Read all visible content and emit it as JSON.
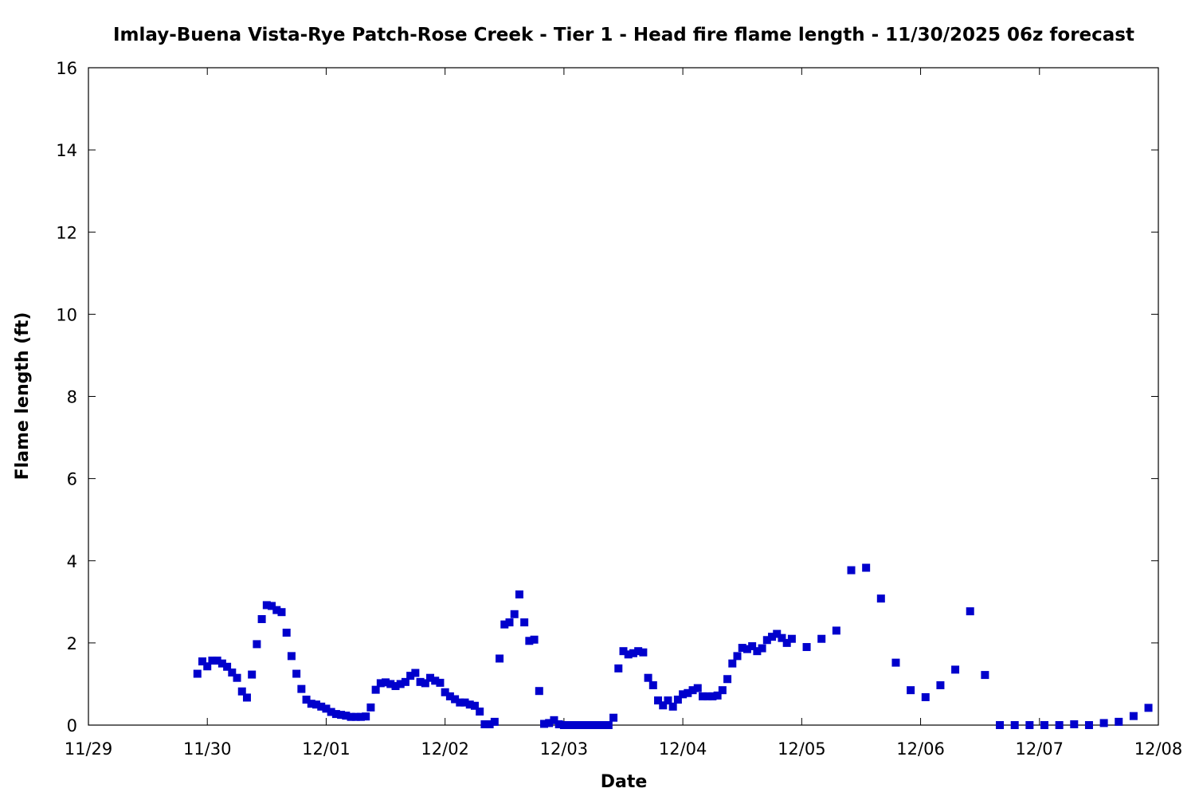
{
  "chart_data": {
    "type": "scatter",
    "title": "Imlay-Buena Vista-Rye Patch-Rose Creek - Tier 1 - Head fire flame length - 11/30/2025 06z forecast",
    "xlabel": "Date",
    "ylabel": "Flame length (ft)",
    "x_ticks": [
      "11/29",
      "11/30",
      "12/01",
      "12/02",
      "12/03",
      "12/04",
      "12/05",
      "12/06",
      "12/07",
      "12/08"
    ],
    "y_ticks": [
      0,
      2,
      4,
      6,
      8,
      10,
      12,
      14,
      16
    ],
    "xlim": [
      "11/29 00",
      "12/08 00"
    ],
    "ylim": [
      0,
      16
    ],
    "grid": false,
    "marker_color": "#0000cc",
    "points": [
      [
        "11/29 22",
        1.25
      ],
      [
        "11/29 23",
        1.55
      ],
      [
        "11/30 00",
        1.43
      ],
      [
        "11/30 01",
        1.57
      ],
      [
        "11/30 02",
        1.57
      ],
      [
        "11/30 03",
        1.5
      ],
      [
        "11/30 04",
        1.42
      ],
      [
        "11/30 05",
        1.28
      ],
      [
        "11/30 06",
        1.15
      ],
      [
        "11/30 07",
        0.82
      ],
      [
        "11/30 08",
        0.67
      ],
      [
        "11/30 09",
        1.23
      ],
      [
        "11/30 10",
        1.97
      ],
      [
        "11/30 11",
        2.58
      ],
      [
        "11/30 12",
        2.92
      ],
      [
        "11/30 13",
        2.9
      ],
      [
        "11/30 14",
        2.8
      ],
      [
        "11/30 15",
        2.75
      ],
      [
        "11/30 16",
        2.25
      ],
      [
        "11/30 17",
        1.68
      ],
      [
        "11/30 18",
        1.25
      ],
      [
        "11/30 19",
        0.88
      ],
      [
        "11/30 20",
        0.62
      ],
      [
        "11/30 21",
        0.52
      ],
      [
        "11/30 22",
        0.5
      ],
      [
        "11/30 23",
        0.45
      ],
      [
        "12/01 00",
        0.4
      ],
      [
        "12/01 01",
        0.32
      ],
      [
        "12/01 02",
        0.27
      ],
      [
        "12/01 03",
        0.25
      ],
      [
        "12/01 04",
        0.23
      ],
      [
        "12/01 05",
        0.2
      ],
      [
        "12/01 06",
        0.2
      ],
      [
        "12/01 07",
        0.2
      ],
      [
        "12/01 08",
        0.21
      ],
      [
        "12/01 09",
        0.43
      ],
      [
        "12/01 10",
        0.86
      ],
      [
        "12/01 11",
        1.02
      ],
      [
        "12/01 12",
        1.04
      ],
      [
        "12/01 13",
        1.0
      ],
      [
        "12/01 14",
        0.95
      ],
      [
        "12/01 15",
        1.0
      ],
      [
        "12/01 16",
        1.05
      ],
      [
        "12/01 17",
        1.2
      ],
      [
        "12/01 18",
        1.27
      ],
      [
        "12/01 19",
        1.05
      ],
      [
        "12/01 20",
        1.02
      ],
      [
        "12/01 21",
        1.15
      ],
      [
        "12/01 22",
        1.08
      ],
      [
        "12/01 23",
        1.03
      ],
      [
        "12/02 00",
        0.8
      ],
      [
        "12/02 01",
        0.7
      ],
      [
        "12/02 02",
        0.63
      ],
      [
        "12/02 03",
        0.55
      ],
      [
        "12/02 04",
        0.55
      ],
      [
        "12/02 05",
        0.5
      ],
      [
        "12/02 06",
        0.47
      ],
      [
        "12/02 07",
        0.33
      ],
      [
        "12/02 08",
        0.02
      ],
      [
        "12/02 09",
        0.02
      ],
      [
        "12/02 10",
        0.08
      ],
      [
        "12/02 11",
        1.62
      ],
      [
        "12/02 12",
        2.45
      ],
      [
        "12/02 13",
        2.5
      ],
      [
        "12/02 14",
        2.7
      ],
      [
        "12/02 15",
        3.18
      ],
      [
        "12/02 16",
        2.5
      ],
      [
        "12/02 17",
        2.05
      ],
      [
        "12/02 18",
        2.08
      ],
      [
        "12/02 19",
        0.83
      ],
      [
        "12/02 20",
        0.03
      ],
      [
        "12/02 21",
        0.05
      ],
      [
        "12/02 22",
        0.12
      ],
      [
        "12/02 23",
        0.02
      ],
      [
        "12/03 00",
        0
      ],
      [
        "12/03 01",
        0
      ],
      [
        "12/03 02",
        0
      ],
      [
        "12/03 03",
        0
      ],
      [
        "12/03 04",
        0
      ],
      [
        "12/03 05",
        0
      ],
      [
        "12/03 06",
        0
      ],
      [
        "12/03 07",
        0
      ],
      [
        "12/03 08",
        0
      ],
      [
        "12/03 09",
        0
      ],
      [
        "12/03 10",
        0.18
      ],
      [
        "12/03 11",
        1.38
      ],
      [
        "12/03 12",
        1.8
      ],
      [
        "12/03 13",
        1.72
      ],
      [
        "12/03 14",
        1.75
      ],
      [
        "12/03 15",
        1.8
      ],
      [
        "12/03 16",
        1.77
      ],
      [
        "12/03 17",
        1.15
      ],
      [
        "12/03 18",
        0.97
      ],
      [
        "12/03 19",
        0.6
      ],
      [
        "12/03 20",
        0.48
      ],
      [
        "12/03 21",
        0.6
      ],
      [
        "12/03 22",
        0.45
      ],
      [
        "12/03 23",
        0.62
      ],
      [
        "12/04 00",
        0.75
      ],
      [
        "12/04 01",
        0.78
      ],
      [
        "12/04 02",
        0.85
      ],
      [
        "12/04 03",
        0.9
      ],
      [
        "12/04 04",
        0.7
      ],
      [
        "12/04 05",
        0.7
      ],
      [
        "12/04 06",
        0.7
      ],
      [
        "12/04 07",
        0.72
      ],
      [
        "12/04 08",
        0.85
      ],
      [
        "12/04 09",
        1.12
      ],
      [
        "12/04 10",
        1.5
      ],
      [
        "12/04 11",
        1.68
      ],
      [
        "12/04 12",
        1.88
      ],
      [
        "12/04 13",
        1.85
      ],
      [
        "12/04 14",
        1.92
      ],
      [
        "12/04 15",
        1.8
      ],
      [
        "12/04 16",
        1.87
      ],
      [
        "12/04 17",
        2.07
      ],
      [
        "12/04 18",
        2.15
      ],
      [
        "12/04 19",
        2.22
      ],
      [
        "12/04 20",
        2.12
      ],
      [
        "12/04 21",
        2.0
      ],
      [
        "12/04 22",
        2.1
      ],
      [
        "12/05 01",
        1.9
      ],
      [
        "12/05 04",
        2.1
      ],
      [
        "12/05 07",
        2.3
      ],
      [
        "12/05 10",
        3.77
      ],
      [
        "12/05 13",
        3.83
      ],
      [
        "12/05 16",
        3.08
      ],
      [
        "12/05 19",
        1.52
      ],
      [
        "12/05 22",
        0.85
      ],
      [
        "12/06 01",
        0.68
      ],
      [
        "12/06 04",
        0.97
      ],
      [
        "12/06 07",
        1.35
      ],
      [
        "12/06 10",
        2.77
      ],
      [
        "12/06 13",
        1.22
      ],
      [
        "12/06 16",
        0
      ],
      [
        "12/06 19",
        0
      ],
      [
        "12/06 22",
        0
      ],
      [
        "12/07 01",
        0
      ],
      [
        "12/07 04",
        0
      ],
      [
        "12/07 07",
        0.02
      ],
      [
        "12/07 10",
        0
      ],
      [
        "12/07 13",
        0.05
      ],
      [
        "12/07 16",
        0.08
      ],
      [
        "12/07 19",
        0.22
      ],
      [
        "12/07 22",
        0.42
      ]
    ]
  }
}
